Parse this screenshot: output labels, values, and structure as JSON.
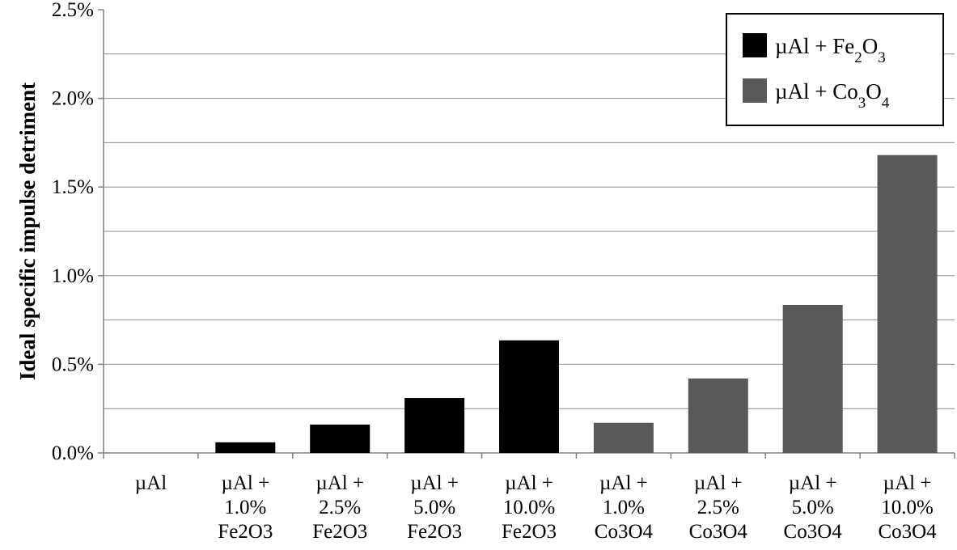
{
  "chart_data": {
    "type": "bar",
    "title": "",
    "xlabel": "",
    "ylabel": "Ideal specific impulse detriment",
    "ylim": [
      0,
      2.5
    ],
    "yticks": [
      {
        "value": 0.0,
        "label": "0.0%"
      },
      {
        "value": 0.5,
        "label": "0.5%"
      },
      {
        "value": 1.0,
        "label": "1.0%"
      },
      {
        "value": 1.5,
        "label": "1.5%"
      },
      {
        "value": 2.0,
        "label": "2.0%"
      },
      {
        "value": 2.5,
        "label": "2.5%"
      }
    ],
    "grid": true,
    "legend_position": "top-right",
    "categories": [
      {
        "lines": [
          "µAl"
        ]
      },
      {
        "lines": [
          "µAl +",
          "1.0%",
          "Fe2O3"
        ]
      },
      {
        "lines": [
          "µAl +",
          "2.5%",
          "Fe2O3"
        ]
      },
      {
        "lines": [
          "µAl +",
          "5.0%",
          "Fe2O3"
        ]
      },
      {
        "lines": [
          "µAl +",
          "10.0%",
          "Fe2O3"
        ]
      },
      {
        "lines": [
          "µAl +",
          "1.0%",
          "Co3O4"
        ]
      },
      {
        "lines": [
          "µAl +",
          "2.5%",
          "Co3O4"
        ]
      },
      {
        "lines": [
          "µAl +",
          "5.0%",
          "Co3O4"
        ]
      },
      {
        "lines": [
          "µAl +",
          "10.0%",
          "Co3O4"
        ]
      }
    ],
    "series": [
      {
        "name": "µAl + Fe2O3",
        "legend_parts": [
          {
            "t": "µAl + Fe"
          },
          {
            "t": "2",
            "sub": true
          },
          {
            "t": "O"
          },
          {
            "t": "3",
            "sub": true
          }
        ],
        "color": "#000000",
        "values": [
          0.0,
          0.06,
          0.16,
          0.31,
          0.635,
          null,
          null,
          null,
          null
        ]
      },
      {
        "name": "µAl + Co3O4",
        "legend_parts": [
          {
            "t": "µAl + Co"
          },
          {
            "t": "3",
            "sub": true
          },
          {
            "t": "O"
          },
          {
            "t": "4",
            "sub": true
          }
        ],
        "color": "#595959",
        "values": [
          null,
          null,
          null,
          null,
          null,
          0.17,
          0.42,
          0.835,
          1.68
        ]
      }
    ]
  }
}
